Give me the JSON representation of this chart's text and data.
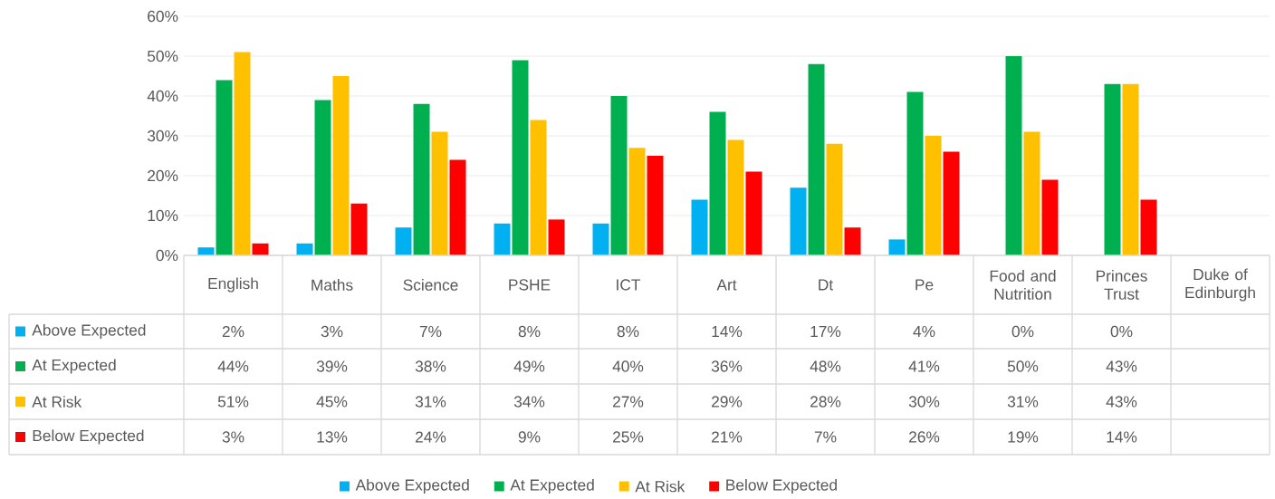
{
  "chart_data": {
    "type": "bar",
    "categories": [
      "English",
      "Maths",
      "Science",
      "PSHE",
      "ICT",
      "Art",
      "Dt",
      "Pe",
      "Food and Nutrition",
      "Princes Trust",
      "Duke of Edinburgh"
    ],
    "series": [
      {
        "name": "Above Expected",
        "color": "#00b0f0",
        "values": [
          2,
          3,
          7,
          8,
          8,
          14,
          17,
          4,
          0,
          0,
          null
        ],
        "value_labels": [
          "2%",
          "3%",
          "7%",
          "8%",
          "8%",
          "14%",
          "17%",
          "4%",
          "0%",
          "0%",
          null
        ]
      },
      {
        "name": "At Expected",
        "color": "#00b050",
        "values": [
          44,
          39,
          38,
          49,
          40,
          36,
          48,
          41,
          50,
          43,
          null
        ],
        "value_labels": [
          "44%",
          "39%",
          "38%",
          "49%",
          "40%",
          "36%",
          "48%",
          "41%",
          "50%",
          "43%",
          null
        ]
      },
      {
        "name": "At Risk",
        "color": "#ffc000",
        "values": [
          51,
          45,
          31,
          34,
          27,
          29,
          28,
          30,
          31,
          43,
          null
        ],
        "value_labels": [
          "51%",
          "45%",
          "31%",
          "34%",
          "27%",
          "29%",
          "28%",
          "30%",
          "31%",
          "43%",
          null
        ]
      },
      {
        "name": "Below Expected",
        "color": "#ff0000",
        "values": [
          3,
          13,
          24,
          9,
          25,
          21,
          7,
          26,
          19,
          14,
          null
        ],
        "value_labels": [
          "3%",
          "13%",
          "24%",
          "9%",
          "25%",
          "21%",
          "7%",
          "26%",
          "19%",
          "14%",
          null
        ]
      }
    ],
    "ylim": [
      0,
      60
    ],
    "yticks": [
      {
        "value": 0,
        "label": "0%"
      },
      {
        "value": 10,
        "label": "10%"
      },
      {
        "value": 20,
        "label": "20%"
      },
      {
        "value": 30,
        "label": "30%"
      },
      {
        "value": 40,
        "label": "40%"
      },
      {
        "value": 50,
        "label": "50%"
      },
      {
        "value": 60,
        "label": "60%"
      }
    ],
    "grid": "y",
    "legend": "bottom"
  }
}
